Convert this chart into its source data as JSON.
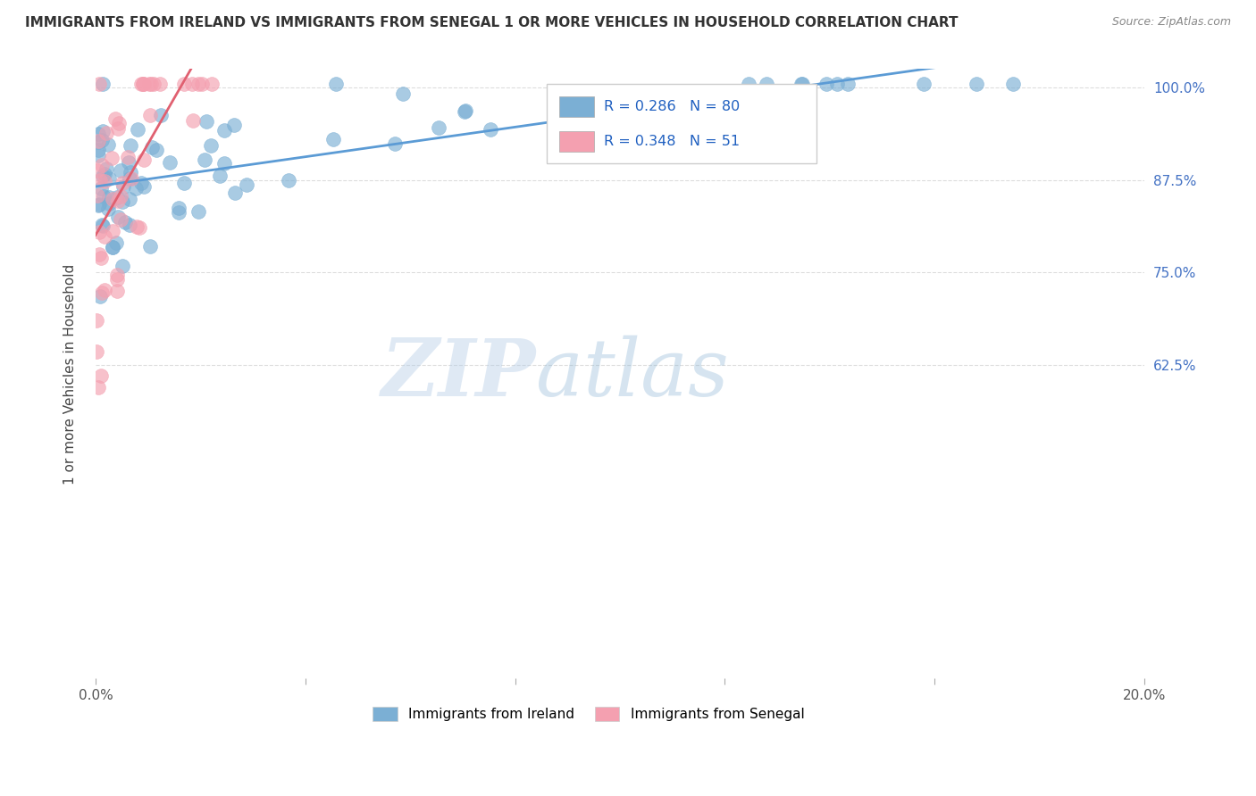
{
  "title": "IMMIGRANTS FROM IRELAND VS IMMIGRANTS FROM SENEGAL 1 OR MORE VEHICLES IN HOUSEHOLD CORRELATION CHART",
  "source": "Source: ZipAtlas.com",
  "ylabel": "1 or more Vehicles in Household",
  "xlim": [
    0.0,
    0.2
  ],
  "ylim": [
    0.2,
    1.025
  ],
  "ireland_color": "#7bafd4",
  "senegal_color": "#f4a0b0",
  "ireland_R": 0.286,
  "ireland_N": 80,
  "senegal_R": 0.348,
  "senegal_N": 51,
  "ireland_line_color": "#5b9bd5",
  "senegal_line_color": "#e06070",
  "legend_R_color": "#2060c0",
  "watermark_zip": "ZIP",
  "watermark_atlas": "atlas",
  "ytick_color": "#4472c4",
  "xtick_color": "#555555"
}
